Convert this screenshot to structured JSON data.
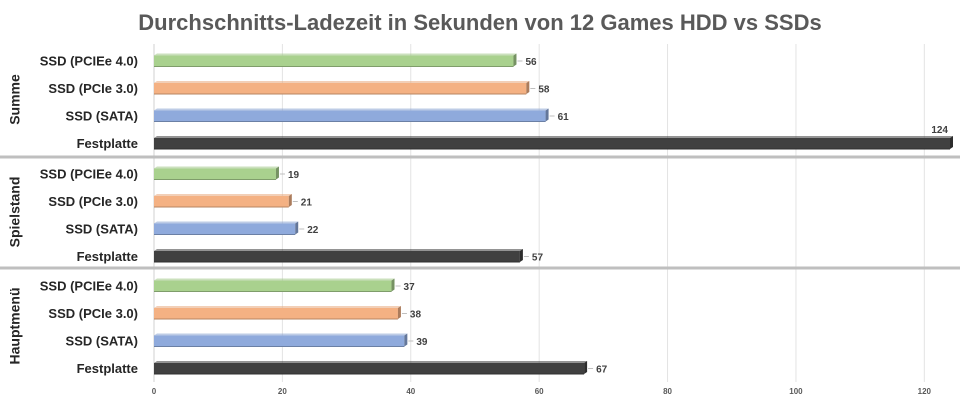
{
  "chart_data": {
    "type": "bar",
    "orientation": "horizontal",
    "title": "Durchschnitts-Ladezeit in Sekunden von 12 Games HDD vs SSDs",
    "xlabel": "",
    "ylabel": "",
    "xlim": [
      0,
      124
    ],
    "xticks": [
      0,
      20,
      40,
      60,
      80,
      100,
      120
    ],
    "grid": true,
    "legend": "none",
    "categories": [
      "SSD (PCIEe 4.0)",
      "SSD (PCIe 3.0)",
      "SSD (SATA)",
      "Festplatte"
    ],
    "colors": {
      "SSD (PCIEe 4.0)": "#a9d18e",
      "SSD (PCIe 3.0)": "#f4b183",
      "SSD (SATA)": "#8faadc",
      "Festplatte": "#404040"
    },
    "groups": [
      {
        "name": "Summe",
        "values": [
          56,
          58,
          61,
          124
        ]
      },
      {
        "name": "Spielstand",
        "values": [
          19,
          21,
          22,
          57
        ]
      },
      {
        "name": "Hauptmenü",
        "values": [
          37,
          38,
          39,
          67
        ]
      }
    ]
  }
}
